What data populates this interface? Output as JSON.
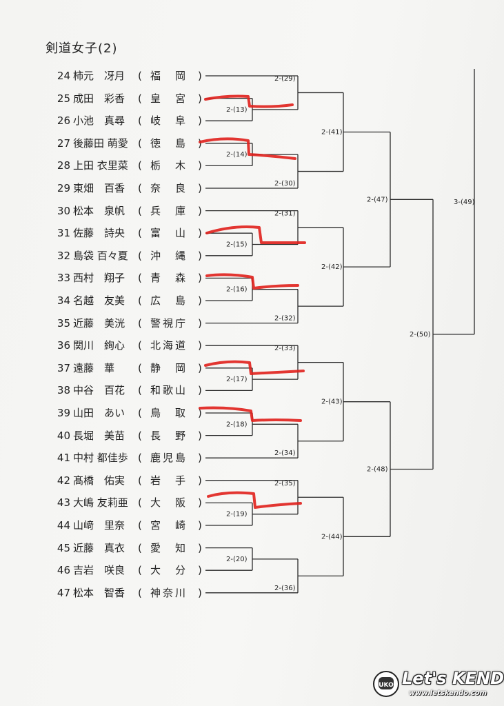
{
  "title": "剣道女子(2)",
  "entries": [
    {
      "num": "24",
      "name": "柿元　冴月",
      "pref": "福　岡"
    },
    {
      "num": "25",
      "name": "成田　彩香",
      "pref": "皇　宮"
    },
    {
      "num": "26",
      "name": "小池　真尋",
      "pref": "岐　阜"
    },
    {
      "num": "27",
      "name": "後藤田 萌愛",
      "pref": "徳　島"
    },
    {
      "num": "28",
      "name": "上田 衣里菜",
      "pref": "栃　木"
    },
    {
      "num": "29",
      "name": "東畑　百香",
      "pref": "奈　良"
    },
    {
      "num": "30",
      "name": "松本　泉帆",
      "pref": "兵　庫"
    },
    {
      "num": "31",
      "name": "佐藤　詩央",
      "pref": "富　山"
    },
    {
      "num": "32",
      "name": "島袋 百々夏",
      "pref": "沖　縄"
    },
    {
      "num": "33",
      "name": "西村　翔子",
      "pref": "青　森"
    },
    {
      "num": "34",
      "name": "名越　友美",
      "pref": "広　島"
    },
    {
      "num": "35",
      "name": "近藤　美洸",
      "pref": "警視庁"
    },
    {
      "num": "36",
      "name": "関川　絢心",
      "pref": "北海道"
    },
    {
      "num": "37",
      "name": "遠藤　華",
      "pref": "静　岡"
    },
    {
      "num": "38",
      "name": "中谷　百花",
      "pref": "和歌山"
    },
    {
      "num": "39",
      "name": "山田　あい",
      "pref": "鳥　取"
    },
    {
      "num": "40",
      "name": "長堀　美苗",
      "pref": "長　野"
    },
    {
      "num": "41",
      "name": "中村 都佳歩",
      "pref": "鹿児島"
    },
    {
      "num": "42",
      "name": "髙橋　佑実",
      "pref": "岩　手"
    },
    {
      "num": "43",
      "name": "大嶋 友莉亜",
      "pref": "大　阪"
    },
    {
      "num": "44",
      "name": "山﨑　里奈",
      "pref": "宮　崎"
    },
    {
      "num": "45",
      "name": "近藤　真衣",
      "pref": "愛　知"
    },
    {
      "num": "46",
      "name": "吉岩　咲良",
      "pref": "大　分"
    },
    {
      "num": "47",
      "name": "松本　智香",
      "pref": "神奈川"
    }
  ],
  "matches": [
    {
      "label": "2-(13)"
    },
    {
      "label": "2-(14)"
    },
    {
      "label": "2-(15)"
    },
    {
      "label": "2-(16)"
    },
    {
      "label": "2-(17)"
    },
    {
      "label": "2-(18)"
    },
    {
      "label": "2-(19)"
    },
    {
      "label": "2-(20)"
    },
    {
      "label": "2-(29)"
    },
    {
      "label": "2-(30)"
    },
    {
      "label": "2-(31)"
    },
    {
      "label": "2-(32)"
    },
    {
      "label": "2-(33)"
    },
    {
      "label": "2-(34)"
    },
    {
      "label": "2-(35)"
    },
    {
      "label": "2-(36)"
    },
    {
      "label": "2-(41)"
    },
    {
      "label": "2-(42)"
    },
    {
      "label": "2-(43)"
    },
    {
      "label": "2-(44)"
    },
    {
      "label": "2-(47)"
    },
    {
      "label": "2-(48)"
    },
    {
      "label": "2-(50)"
    },
    {
      "label": "3-(49)"
    }
  ],
  "ink_color": "#2b2b2b",
  "marker_color": "#e0201c",
  "watermark": {
    "text": "Let's KENDO!",
    "url": "www.letskendo.com",
    "mark": "UKO"
  }
}
